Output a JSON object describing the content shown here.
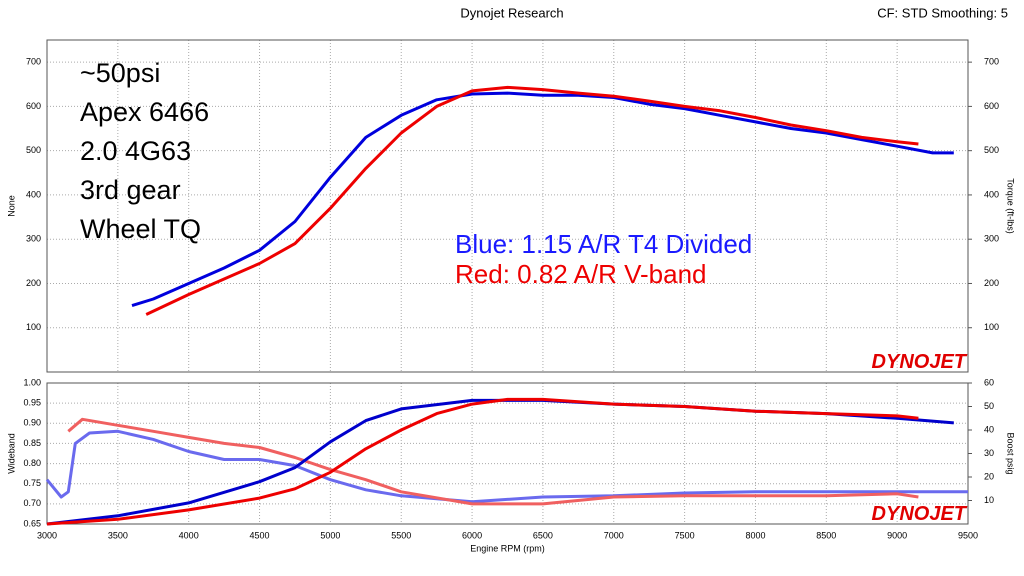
{
  "header": {
    "title": "Dynojet Research",
    "settings": "CF: STD Smoothing: 5",
    "logo": "DYNOJET"
  },
  "chart_data": [
    {
      "type": "line",
      "ylabel": "None",
      "y2label": "Torque (ft-lbs)",
      "annotations": [
        "~50psi",
        "Apex 6466",
        "2.0 4G63",
        "3rd gear",
        "Wheel TQ"
      ],
      "notes": [
        "Blue: 1.15 A/R T4 Divided",
        "Red:  0.82 A/R V-band"
      ],
      "note_colors": [
        "#1a1aff",
        "#ee0000"
      ],
      "xlim": [
        3000,
        9500
      ],
      "ylim": [
        0,
        750
      ],
      "yticks": [
        100,
        200,
        300,
        400,
        500,
        600,
        700
      ],
      "y2lim": [
        0,
        750
      ],
      "y2ticks": [
        100,
        200,
        300,
        400,
        500,
        600,
        700
      ],
      "grid": true,
      "series": [
        {
          "color": "#0000dd",
          "x": [
            3600,
            3750,
            4000,
            4250,
            4500,
            4750,
            5000,
            5250,
            5500,
            5750,
            6000,
            6250,
            6500,
            6750,
            7000,
            7250,
            7500,
            7750,
            8000,
            8250,
            8500,
            8750,
            9000,
            9250,
            9400
          ],
          "values": [
            150,
            165,
            200,
            235,
            275,
            340,
            440,
            530,
            580,
            615,
            628,
            630,
            625,
            625,
            620,
            605,
            595,
            580,
            565,
            550,
            540,
            525,
            510,
            495,
            495
          ]
        },
        {
          "color": "#ee0000",
          "x": [
            3700,
            4000,
            4250,
            4500,
            4750,
            5000,
            5250,
            5500,
            5750,
            6000,
            6250,
            6500,
            6750,
            7000,
            7250,
            7500,
            7750,
            8000,
            8250,
            8500,
            8750,
            9000,
            9150
          ],
          "values": [
            130,
            175,
            210,
            245,
            290,
            370,
            460,
            540,
            600,
            635,
            643,
            638,
            630,
            623,
            612,
            600,
            590,
            575,
            558,
            545,
            530,
            520,
            515
          ]
        }
      ]
    },
    {
      "type": "line",
      "ylabel": "Wideband",
      "y2label": "Boost psig",
      "xlabel": "Engine RPM (rpm)",
      "xlim": [
        3000,
        9500
      ],
      "xticks": [
        3000,
        3500,
        4000,
        4500,
        5000,
        5500,
        6000,
        6500,
        7000,
        7500,
        8000,
        8500,
        9000,
        9500
      ],
      "ylim": [
        0.65,
        1.0
      ],
      "yticks": [
        0.65,
        {
          "value": 0.7,
          "label": "0.70"
        },
        0.75,
        {
          "value": 0.8,
          "label": "0.80"
        },
        0.85,
        {
          "value": 0.9,
          "label": "0.90"
        },
        0.95,
        {
          "value": 1.0,
          "label": "1.00"
        }
      ],
      "y2lim": [
        0,
        60
      ],
      "y2ticks": [
        10,
        20,
        30,
        40,
        50,
        60
      ],
      "grid": true,
      "series": [
        {
          "color": "#6a6aee",
          "x": [
            3000,
            3100,
            3150,
            3200,
            3300,
            3500,
            3750,
            4000,
            4250,
            4500,
            4750,
            5000,
            5250,
            5500,
            6000,
            6500,
            7000,
            7500,
            8000,
            8500,
            9000,
            9500
          ],
          "values": [
            0.76,
            0.717,
            0.73,
            0.85,
            0.876,
            0.88,
            0.86,
            0.83,
            0.81,
            0.81,
            0.795,
            0.76,
            0.735,
            0.72,
            0.705,
            0.717,
            0.72,
            0.727,
            0.73,
            0.73,
            0.73,
            0.73
          ]
        },
        {
          "color": "#f06060",
          "x": [
            3150,
            3250,
            3500,
            3750,
            4000,
            4250,
            4500,
            4750,
            5000,
            5250,
            5500,
            6000,
            6500,
            7000,
            7500,
            8000,
            8500,
            9000,
            9150
          ],
          "values": [
            0.88,
            0.91,
            0.895,
            0.88,
            0.865,
            0.85,
            0.84,
            0.815,
            0.785,
            0.76,
            0.73,
            0.7,
            0.7,
            0.717,
            0.72,
            0.72,
            0.72,
            0.725,
            0.717
          ]
        },
        {
          "color": "#0000cc",
          "axis": "y2",
          "x": [
            3000,
            3500,
            4000,
            4500,
            4750,
            5000,
            5250,
            5500,
            6000,
            6500,
            7000,
            7500,
            8000,
            8500,
            9000,
            9400
          ],
          "values": [
            0,
            3.5,
            9,
            18,
            24,
            35,
            44,
            49,
            52.6,
            52.6,
            51,
            50,
            48,
            47,
            45,
            43
          ]
        },
        {
          "color": "#ee0000",
          "axis": "y2",
          "x": [
            3000,
            3500,
            4000,
            4500,
            4750,
            5000,
            5250,
            5500,
            5750,
            6000,
            6250,
            6500,
            7000,
            7500,
            8000,
            8500,
            9000,
            9150
          ],
          "values": [
            0,
            2,
            6,
            11,
            15,
            22,
            32,
            40,
            47,
            51,
            53,
            53,
            51,
            50,
            48,
            47,
            46,
            45
          ]
        }
      ]
    }
  ]
}
